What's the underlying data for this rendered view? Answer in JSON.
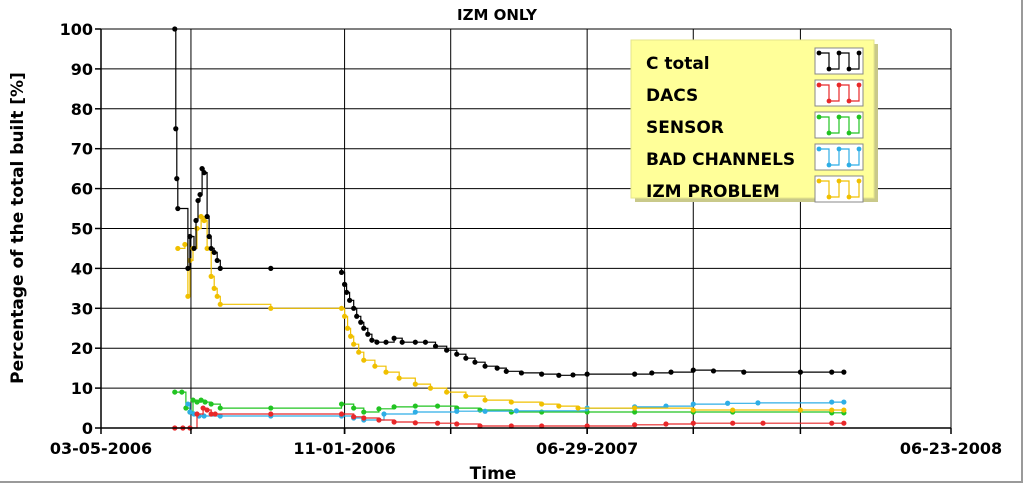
{
  "chart_data": {
    "type": "line",
    "step": true,
    "title": "IZM ONLY",
    "xlabel": "Time",
    "ylabel": "Percentage of the total built [%]",
    "ylim": [
      0,
      100
    ],
    "yticks": [
      0,
      10,
      20,
      30,
      40,
      50,
      60,
      70,
      80,
      90,
      100
    ],
    "x_axis": {
      "type": "date",
      "start": "2006-03-05",
      "end": "2008-06-23",
      "labeled_ticks": [
        "03-05-2006",
        "11-01-2006",
        "06-29-2007",
        "06-23-2008"
      ],
      "labeled_tick_dates": [
        "2006-03-05",
        "2006-11-01",
        "2007-06-29",
        "2008-06-23"
      ],
      "gridline_dates": [
        "2006-06-02",
        "2006-11-01",
        "2007-02-14",
        "2007-06-29",
        "2007-10-12",
        "2008-01-26"
      ]
    },
    "legend_position": "top-right",
    "series": [
      {
        "name": "C total",
        "color": "#000000",
        "points": [
          [
            "2006-05-17",
            100
          ],
          [
            "2006-05-18",
            75
          ],
          [
            "2006-05-19",
            62.5
          ],
          [
            "2006-05-20",
            55
          ],
          [
            "2006-05-30",
            40
          ],
          [
            "2006-06-01",
            48
          ],
          [
            "2006-06-05",
            45
          ],
          [
            "2006-06-07",
            52
          ],
          [
            "2006-06-09",
            57
          ],
          [
            "2006-06-11",
            58.5
          ],
          [
            "2006-06-13",
            65
          ],
          [
            "2006-06-15",
            64
          ],
          [
            "2006-06-18",
            53
          ],
          [
            "2006-06-20",
            48
          ],
          [
            "2006-06-22",
            45
          ],
          [
            "2006-06-25",
            44
          ],
          [
            "2006-06-28",
            42
          ],
          [
            "2006-07-01",
            40
          ],
          [
            "2006-08-20",
            40
          ],
          [
            "2006-10-29",
            39
          ],
          [
            "2006-11-01",
            36
          ],
          [
            "2006-11-03",
            34
          ],
          [
            "2006-11-06",
            32
          ],
          [
            "2006-11-10",
            30
          ],
          [
            "2006-11-13",
            28
          ],
          [
            "2006-11-17",
            26.5
          ],
          [
            "2006-11-20",
            25
          ],
          [
            "2006-11-24",
            23.5
          ],
          [
            "2006-11-28",
            22
          ],
          [
            "2006-12-03",
            21.5
          ],
          [
            "2006-12-12",
            21.5
          ],
          [
            "2006-12-20",
            22.5
          ],
          [
            "2006-12-28",
            21.5
          ],
          [
            "2007-01-10",
            21.5
          ],
          [
            "2007-01-20",
            21.5
          ],
          [
            "2007-01-30",
            20.5
          ],
          [
            "2007-02-10",
            19.5
          ],
          [
            "2007-02-20",
            18.5
          ],
          [
            "2007-03-01",
            17.5
          ],
          [
            "2007-03-10",
            16.5
          ],
          [
            "2007-03-20",
            15.5
          ],
          [
            "2007-04-01",
            15
          ],
          [
            "2007-04-10",
            14.2
          ],
          [
            "2007-04-25",
            13.8
          ],
          [
            "2007-05-15",
            13.5
          ],
          [
            "2007-06-01",
            13.2
          ],
          [
            "2007-06-15",
            13.3
          ],
          [
            "2007-06-29",
            13.5
          ],
          [
            "2007-08-15",
            13.5
          ],
          [
            "2007-09-01",
            13.8
          ],
          [
            "2007-09-20",
            14
          ],
          [
            "2007-10-12",
            14.5
          ],
          [
            "2007-11-01",
            14.3
          ],
          [
            "2007-12-01",
            14
          ],
          [
            "2008-01-26",
            14
          ],
          [
            "2008-02-26",
            14
          ],
          [
            "2008-03-09",
            14
          ]
        ]
      },
      {
        "name": "DACS",
        "color": "#e8282a",
        "points": [
          [
            "2006-05-17",
            0
          ],
          [
            "2006-05-25",
            0
          ],
          [
            "2006-06-01",
            0
          ],
          [
            "2006-06-08",
            3.5
          ],
          [
            "2006-06-14",
            5
          ],
          [
            "2006-06-18",
            4.5
          ],
          [
            "2006-06-22",
            3.5
          ],
          [
            "2006-06-26",
            3.5
          ],
          [
            "2006-08-20",
            3.5
          ],
          [
            "2006-10-29",
            3.5
          ],
          [
            "2006-11-10",
            2.8
          ],
          [
            "2006-11-20",
            2.5
          ],
          [
            "2006-12-05",
            2
          ],
          [
            "2006-12-20",
            1.5
          ],
          [
            "2007-01-10",
            1.3
          ],
          [
            "2007-02-01",
            1.2
          ],
          [
            "2007-02-20",
            1
          ],
          [
            "2007-03-15",
            0.5
          ],
          [
            "2007-04-15",
            0.5
          ],
          [
            "2007-05-15",
            0.5
          ],
          [
            "2007-06-29",
            0.5
          ],
          [
            "2007-08-15",
            0.8
          ],
          [
            "2007-09-15",
            1
          ],
          [
            "2007-10-12",
            1.2
          ],
          [
            "2007-11-20",
            1.2
          ],
          [
            "2007-12-20",
            1.2
          ],
          [
            "2008-02-26",
            1.2
          ],
          [
            "2008-03-09",
            1.2
          ]
        ]
      },
      {
        "name": "SENSOR",
        "color": "#22c422",
        "points": [
          [
            "2006-05-17",
            9
          ],
          [
            "2006-05-24",
            9
          ],
          [
            "2006-05-28",
            5
          ],
          [
            "2006-06-01",
            4
          ],
          [
            "2006-06-04",
            7
          ],
          [
            "2006-06-08",
            6.5
          ],
          [
            "2006-06-12",
            7
          ],
          [
            "2006-06-16",
            6.5
          ],
          [
            "2006-06-22",
            6
          ],
          [
            "2006-07-01",
            5
          ],
          [
            "2006-08-20",
            5
          ],
          [
            "2006-10-29",
            6
          ],
          [
            "2006-11-10",
            5
          ],
          [
            "2006-11-20",
            4
          ],
          [
            "2006-12-05",
            4.8
          ],
          [
            "2006-12-20",
            5.3
          ],
          [
            "2007-01-10",
            5.5
          ],
          [
            "2007-02-01",
            5.5
          ],
          [
            "2007-02-20",
            5
          ],
          [
            "2007-03-15",
            4.5
          ],
          [
            "2007-04-15",
            4
          ],
          [
            "2007-05-15",
            4
          ],
          [
            "2007-06-29",
            4
          ],
          [
            "2007-08-15",
            4
          ],
          [
            "2007-10-12",
            4
          ],
          [
            "2007-11-20",
            4
          ],
          [
            "2008-02-26",
            3.8
          ],
          [
            "2008-03-09",
            3.8
          ]
        ]
      },
      {
        "name": "BAD CHANNELS",
        "color": "#2eaee6",
        "points": [
          [
            "2006-05-30",
            6
          ],
          [
            "2006-06-01",
            4
          ],
          [
            "2006-06-05",
            3.5
          ],
          [
            "2006-06-10",
            3
          ],
          [
            "2006-06-15",
            3
          ],
          [
            "2006-07-01",
            3
          ],
          [
            "2006-08-20",
            3
          ],
          [
            "2006-10-29",
            3
          ],
          [
            "2006-11-10",
            2.5
          ],
          [
            "2006-11-20",
            2
          ],
          [
            "2006-12-10",
            3.5
          ],
          [
            "2007-01-10",
            4
          ],
          [
            "2007-02-20",
            4.2
          ],
          [
            "2007-03-20",
            4.2
          ],
          [
            "2007-04-20",
            4.3
          ],
          [
            "2007-06-29",
            5
          ],
          [
            "2007-08-15",
            5.3
          ],
          [
            "2007-09-15",
            5.5
          ],
          [
            "2007-10-12",
            6
          ],
          [
            "2007-11-15",
            6.2
          ],
          [
            "2007-12-15",
            6.3
          ],
          [
            "2008-02-26",
            6.5
          ],
          [
            "2008-03-09",
            6.5
          ]
        ]
      },
      {
        "name": "IZM PROBLEM",
        "color": "#f0c000",
        "points": [
          [
            "2006-05-20",
            45
          ],
          [
            "2006-05-27",
            46
          ],
          [
            "2006-05-30",
            33
          ],
          [
            "2006-06-01",
            42
          ],
          [
            "2006-06-04",
            45
          ],
          [
            "2006-06-08",
            50
          ],
          [
            "2006-06-12",
            53
          ],
          [
            "2006-06-15",
            52
          ],
          [
            "2006-06-18",
            45
          ],
          [
            "2006-06-22",
            38
          ],
          [
            "2006-06-25",
            35
          ],
          [
            "2006-06-28",
            33
          ],
          [
            "2006-07-01",
            31
          ],
          [
            "2006-08-20",
            30
          ],
          [
            "2006-10-29",
            30
          ],
          [
            "2006-11-01",
            28
          ],
          [
            "2006-11-04",
            25
          ],
          [
            "2006-11-07",
            23
          ],
          [
            "2006-11-10",
            21
          ],
          [
            "2006-11-15",
            19
          ],
          [
            "2006-11-20",
            17
          ],
          [
            "2006-12-01",
            15.5
          ],
          [
            "2006-12-12",
            14
          ],
          [
            "2006-12-25",
            12.5
          ],
          [
            "2007-01-10",
            11
          ],
          [
            "2007-01-25",
            10
          ],
          [
            "2007-02-10",
            9
          ],
          [
            "2007-03-01",
            8
          ],
          [
            "2007-03-20",
            7
          ],
          [
            "2007-04-15",
            6.5
          ],
          [
            "2007-05-15",
            6
          ],
          [
            "2007-06-01",
            5.5
          ],
          [
            "2007-06-20",
            5
          ],
          [
            "2007-08-15",
            5
          ],
          [
            "2007-10-12",
            4.5
          ],
          [
            "2007-11-20",
            4.5
          ],
          [
            "2008-01-26",
            4.5
          ],
          [
            "2008-02-26",
            4.5
          ],
          [
            "2008-03-09",
            4.5
          ]
        ]
      }
    ]
  }
}
